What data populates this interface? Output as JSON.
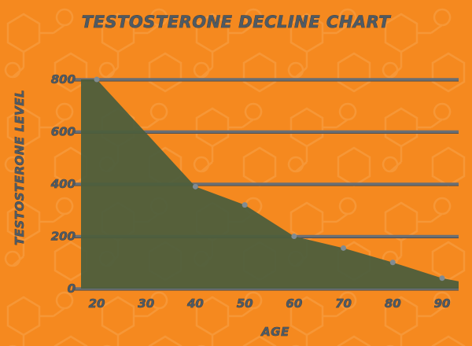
{
  "chart_data": {
    "type": "area",
    "title": "TESTOSTERONE DECLINE CHART",
    "xlabel": "AGE",
    "ylabel": "TESTOSTERONE LEVEL",
    "x": [
      20,
      40,
      50,
      60,
      70,
      80,
      90
    ],
    "series": [
      {
        "values": [
          800,
          390,
          320,
          200,
          155,
          100,
          40
        ]
      }
    ],
    "x_ticks": [
      "20",
      "30",
      "40",
      "50",
      "60",
      "70",
      "80",
      "90"
    ],
    "y_ticks": [
      "0",
      "200",
      "400",
      "600",
      "800"
    ],
    "xlim": [
      20,
      90
    ],
    "ylim": [
      0,
      800
    ],
    "grid": true,
    "legend": "none",
    "colors": {
      "background": "#f5891f",
      "area_fill": "#4d5e3c",
      "grid": "#6a6f74",
      "text": "#4f5a63",
      "point": "#7f8b93"
    }
  }
}
